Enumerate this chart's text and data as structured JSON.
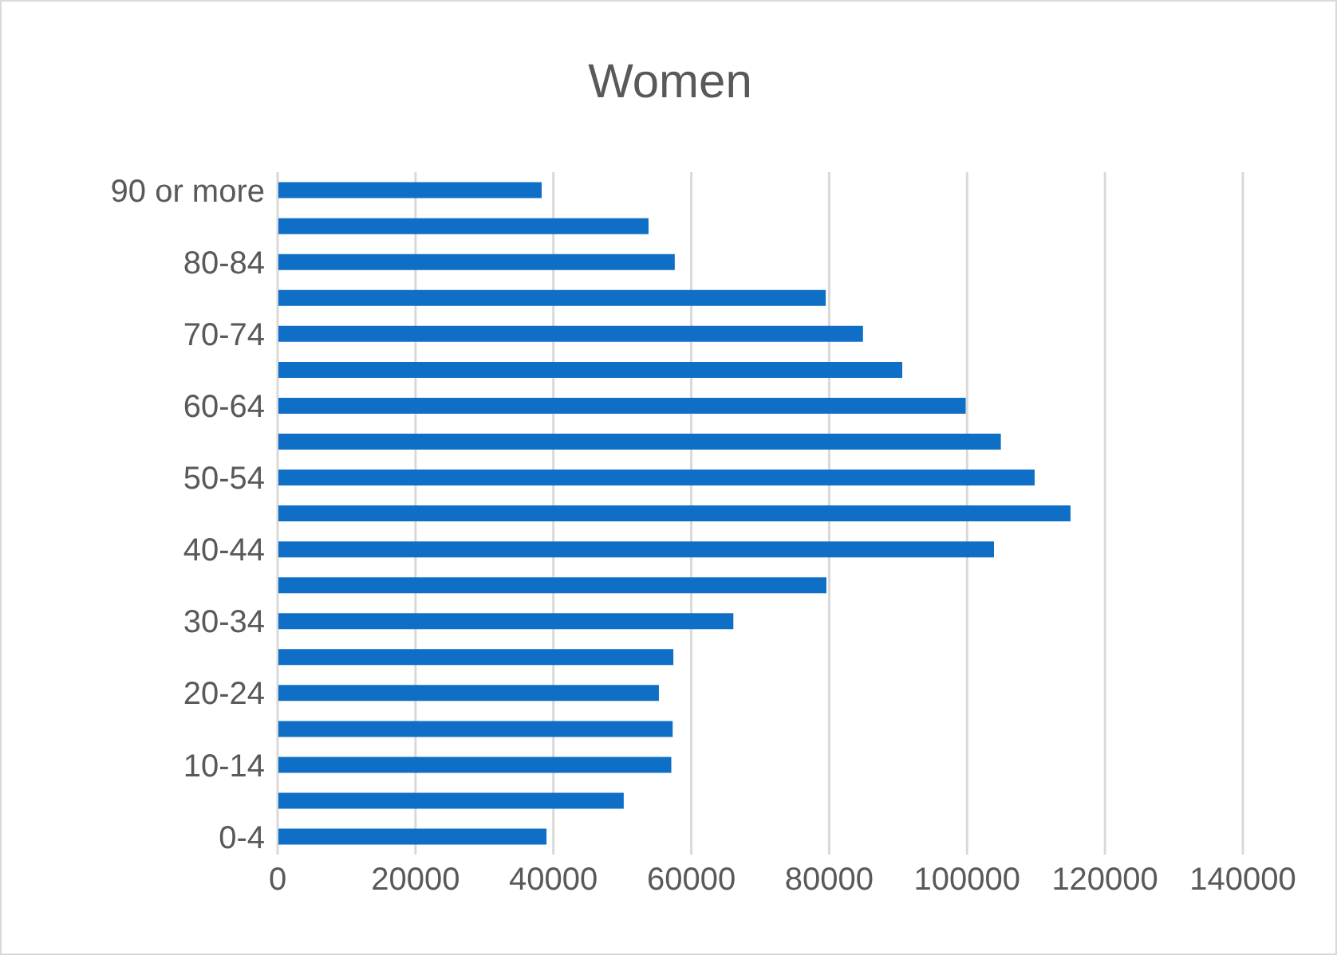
{
  "chart_data": {
    "type": "bar",
    "orientation": "horizontal",
    "title": "Women",
    "categories": [
      "90 or more",
      null,
      "80-84",
      null,
      "70-74",
      null,
      "60-64",
      null,
      "50-54",
      null,
      "40-44",
      null,
      "30-34",
      null,
      "20-24",
      null,
      "10-14",
      null,
      "0-4"
    ],
    "values": [
      38300,
      53800,
      57600,
      79500,
      84900,
      90600,
      99800,
      104900,
      109800,
      115000,
      103900,
      79600,
      66100,
      57400,
      55300,
      57300,
      57100,
      50200,
      39000
    ],
    "color": "#0f6fc6",
    "xlim": [
      0,
      140000
    ],
    "xticks": [
      0,
      20000,
      40000,
      60000,
      80000,
      100000,
      120000,
      140000
    ],
    "grid": "x"
  }
}
